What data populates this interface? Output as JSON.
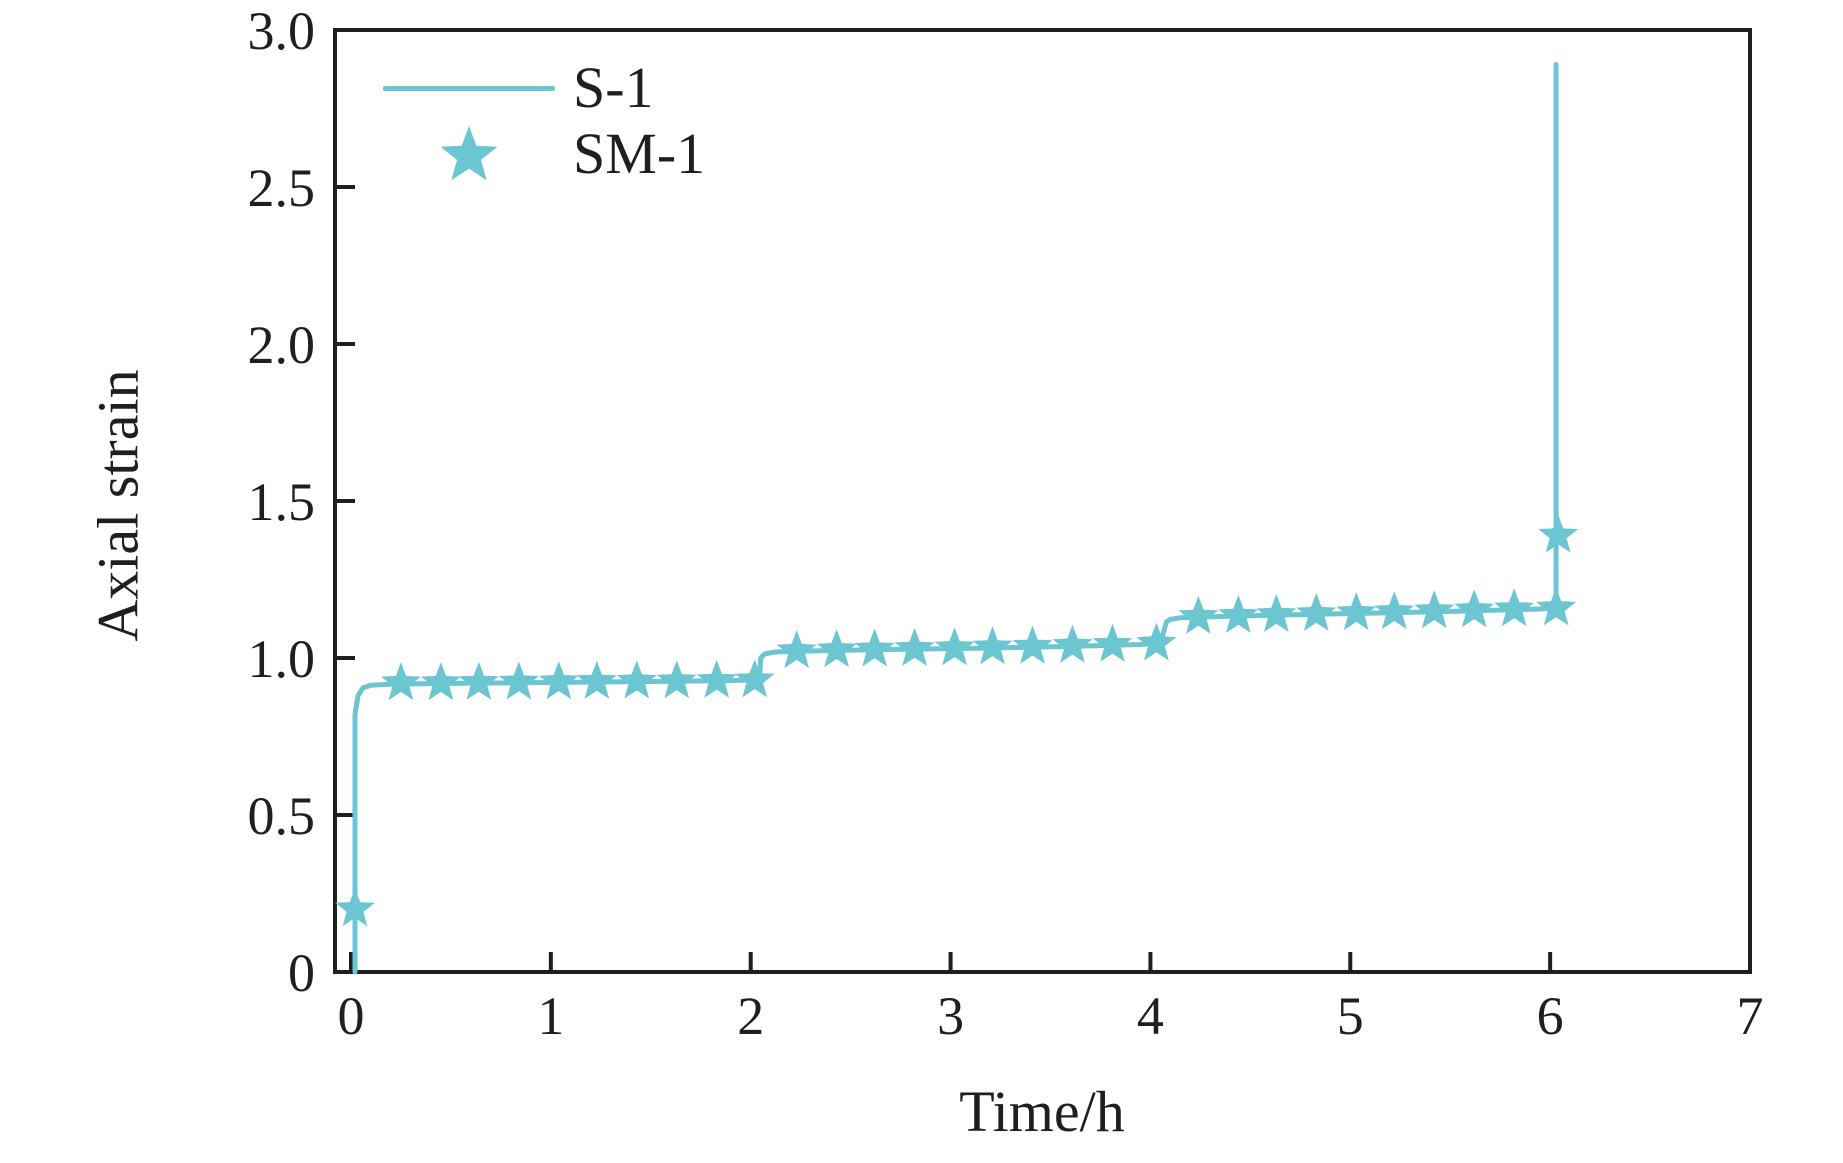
{
  "chart_data": {
    "type": "line",
    "title": "",
    "xlabel": "Time/h",
    "ylabel": "Axial strain",
    "xlim": [
      -0.08,
      7
    ],
    "ylim": [
      0,
      3
    ],
    "xticks": [
      0,
      1,
      2,
      3,
      4,
      5,
      6,
      7
    ],
    "yticks": [
      0,
      0.5,
      1.0,
      1.5,
      2.0,
      2.5,
      3.0
    ],
    "grid": false,
    "axis_color": "#1f1f1f",
    "accent_color": "#6bc6d2",
    "legend": {
      "position": "top-left-inside",
      "entries": [
        {
          "label": "S-1",
          "marker": "line"
        },
        {
          "label": "SM-1",
          "marker": "star"
        }
      ]
    },
    "series": [
      {
        "name": "S-1",
        "style": "line",
        "color": "#6bc6d2",
        "points": [
          [
            0.02,
            0.0
          ],
          [
            0.02,
            0.82
          ],
          [
            0.035,
            0.88
          ],
          [
            0.06,
            0.905
          ],
          [
            0.1,
            0.913
          ],
          [
            0.2,
            0.917
          ],
          [
            0.6,
            0.92
          ],
          [
            1.0,
            0.922
          ],
          [
            1.5,
            0.925
          ],
          [
            1.9,
            0.928
          ],
          [
            2.03,
            0.931
          ],
          [
            2.045,
            0.945
          ],
          [
            2.05,
            1.0
          ],
          [
            2.07,
            1.013
          ],
          [
            2.12,
            1.019
          ],
          [
            2.4,
            1.024
          ],
          [
            2.8,
            1.028
          ],
          [
            3.2,
            1.032
          ],
          [
            3.6,
            1.037
          ],
          [
            3.95,
            1.043
          ],
          [
            4.05,
            1.048
          ],
          [
            4.065,
            1.08
          ],
          [
            4.08,
            1.115
          ],
          [
            4.1,
            1.123
          ],
          [
            4.15,
            1.128
          ],
          [
            4.4,
            1.133
          ],
          [
            4.8,
            1.139
          ],
          [
            5.2,
            1.144
          ],
          [
            5.6,
            1.15
          ],
          [
            5.95,
            1.156
          ],
          [
            6.03,
            1.159
          ],
          [
            6.03,
            2.89
          ]
        ]
      },
      {
        "name": "SM-1",
        "style": "scatter-star",
        "color": "#6bc6d2",
        "points": [
          [
            0.02,
            0.2
          ],
          [
            0.25,
            0.92
          ],
          [
            0.45,
            0.92
          ],
          [
            0.64,
            0.921
          ],
          [
            0.84,
            0.922
          ],
          [
            1.04,
            0.923
          ],
          [
            1.23,
            0.924
          ],
          [
            1.43,
            0.925
          ],
          [
            1.63,
            0.926
          ],
          [
            1.83,
            0.927
          ],
          [
            2.02,
            0.929
          ],
          [
            2.23,
            1.022
          ],
          [
            2.43,
            1.025
          ],
          [
            2.62,
            1.027
          ],
          [
            2.82,
            1.029
          ],
          [
            3.02,
            1.031
          ],
          [
            3.21,
            1.034
          ],
          [
            3.41,
            1.036
          ],
          [
            3.61,
            1.039
          ],
          [
            3.81,
            1.042
          ],
          [
            4.03,
            1.046
          ],
          [
            4.24,
            1.131
          ],
          [
            4.44,
            1.134
          ],
          [
            4.63,
            1.137
          ],
          [
            4.83,
            1.14
          ],
          [
            5.03,
            1.143
          ],
          [
            5.22,
            1.146
          ],
          [
            5.42,
            1.149
          ],
          [
            5.62,
            1.152
          ],
          [
            5.82,
            1.155
          ],
          [
            6.03,
            1.158
          ],
          [
            6.04,
            1.39
          ]
        ]
      }
    ]
  }
}
